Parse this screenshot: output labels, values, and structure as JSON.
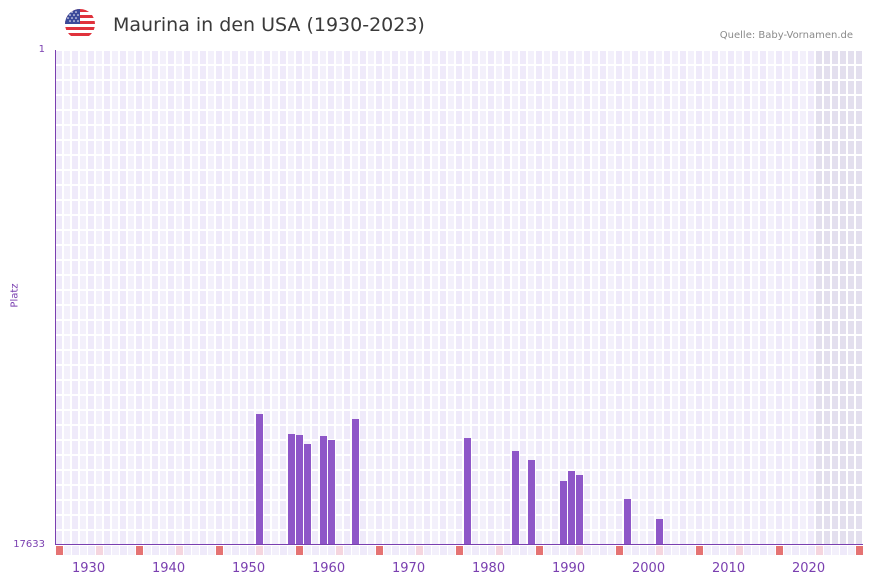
{
  "header": {
    "title": "Maurina in den USA (1930-2023)",
    "source": "Quelle: Baby-Vornamen.de",
    "flag_icon": "us-flag-icon"
  },
  "colors": {
    "bar": "#8e57c8",
    "axis": "#7a3fb0",
    "grid_cell_a": "#efeafa",
    "grid_cell_b": "#f3f0fb",
    "future_shade": "#e3dfee",
    "decade_marker": "#e57373",
    "halfdecade_marker": "#f5d5de"
  },
  "chart_data": {
    "type": "bar",
    "title": "Maurina in den USA (1930-2023)",
    "xlabel": "",
    "ylabel": "Platz",
    "y_inverted": true,
    "ylim": [
      1,
      17633
    ],
    "y_ticks": [
      "1",
      "17633"
    ],
    "xlim": [
      1928,
      2028
    ],
    "x_ticks": [
      "1930",
      "1940",
      "1950",
      "1960",
      "1970",
      "1980",
      "1990",
      "2000",
      "2010",
      "2020"
    ],
    "grid": true,
    "legend": null,
    "categories": [
      1953,
      1957,
      1958,
      1959,
      1961,
      1962,
      1965,
      1979,
      1985,
      1987,
      1991,
      1992,
      1993,
      1999,
      2003
    ],
    "values": [
      12966,
      13679,
      13714,
      14034,
      13750,
      13892,
      13144,
      13821,
      14284,
      14604,
      15352,
      14996,
      15139,
      15993,
      16706
    ]
  }
}
